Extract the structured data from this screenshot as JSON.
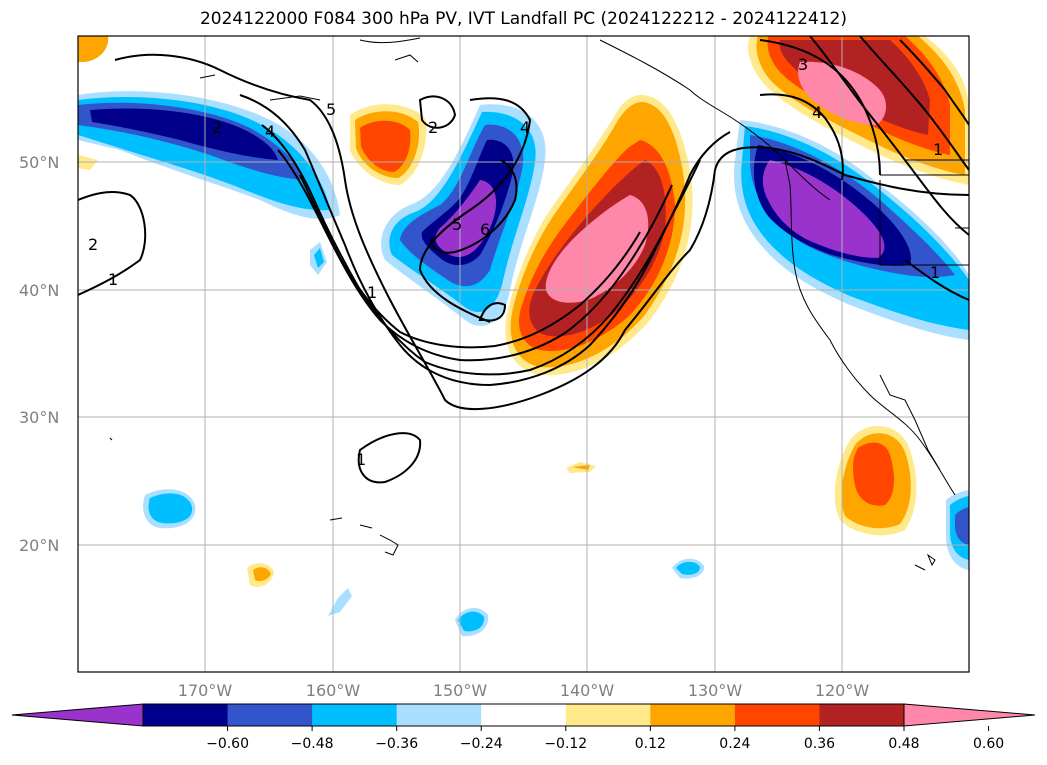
{
  "title": "2024122000 F084 300 hPa PV, IVT Landfall PC (2024122212 - 2024122412)",
  "lat_labels": [
    "50°N",
    "40°N",
    "30°N",
    "20°N"
  ],
  "lon_labels": [
    "170°W",
    "160°W",
    "150°W",
    "140°W",
    "130°W",
    "120°W"
  ],
  "colorbar": {
    "colors": [
      "#9933cc",
      "#00008b",
      "#3355cc",
      "#00bfff",
      "#aadfff",
      "#ffffff",
      "#ffe98a",
      "#ffa500",
      "#ff4500",
      "#b22222",
      "#ff88aa"
    ],
    "ticks": [
      "−0.60",
      "−0.48",
      "−0.36",
      "−0.24",
      "−0.12",
      "0.12",
      "0.24",
      "0.36",
      "0.48",
      "0.60"
    ]
  },
  "contour_labels": [
    "2",
    "1",
    "2",
    "4",
    "5",
    "2",
    "1",
    "5",
    "6",
    "4",
    "3",
    "4",
    "1",
    "1",
    "1"
  ],
  "colors": {
    "grid": "#b0b0b0",
    "coast": "#000000"
  }
}
